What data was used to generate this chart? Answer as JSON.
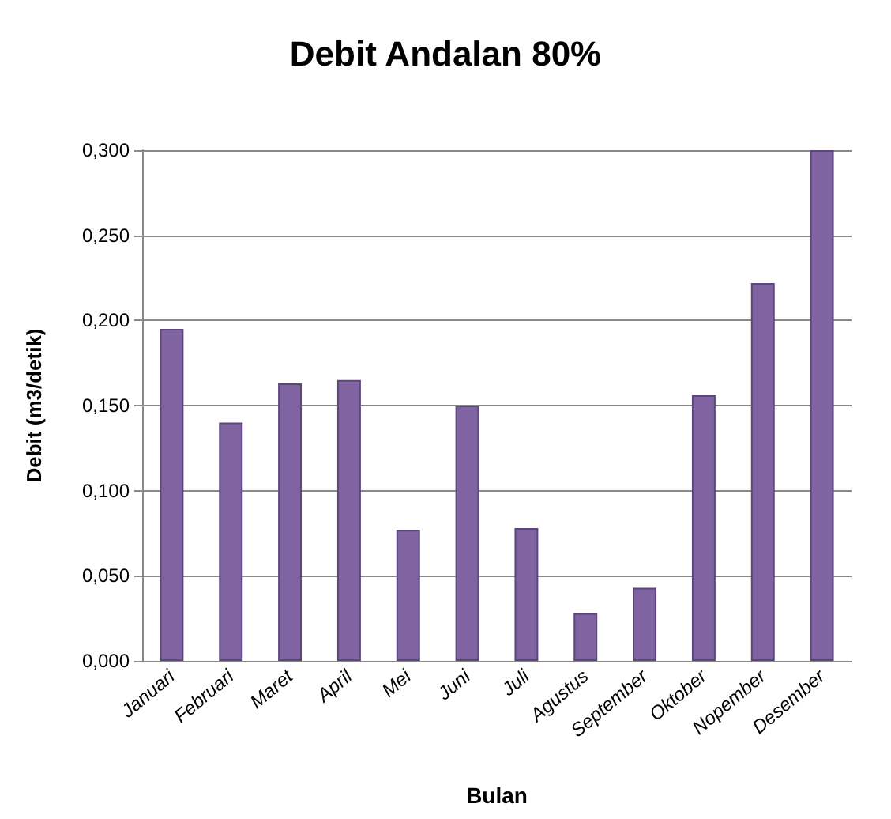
{
  "chart_data": {
    "type": "bar",
    "title": "Debit Andalan 80%",
    "xlabel": "Bulan",
    "ylabel": "Debit (m3/detik)",
    "categories": [
      "Januari",
      "Februari",
      "Maret",
      "April",
      "Mei",
      "Juni",
      "Juli",
      "Agustus",
      "September",
      "Oktober",
      "Nopember",
      "Desember"
    ],
    "values": [
      0.195,
      0.14,
      0.163,
      0.165,
      0.077,
      0.15,
      0.078,
      0.028,
      0.043,
      0.156,
      0.222,
      0.3
    ],
    "color": "#8064a2",
    "ylim": [
      0,
      0.3
    ],
    "yticks": [
      {
        "value": 0,
        "label": "0,000"
      },
      {
        "value": 0.05,
        "label": "0,050"
      },
      {
        "value": 0.1,
        "label": "0,100"
      },
      {
        "value": 0.15,
        "label": "0,150"
      },
      {
        "value": 0.2,
        "label": "0,200"
      },
      {
        "value": 0.25,
        "label": "0,250"
      },
      {
        "value": 0.3,
        "label": "0,300"
      }
    ],
    "grid": "y"
  }
}
